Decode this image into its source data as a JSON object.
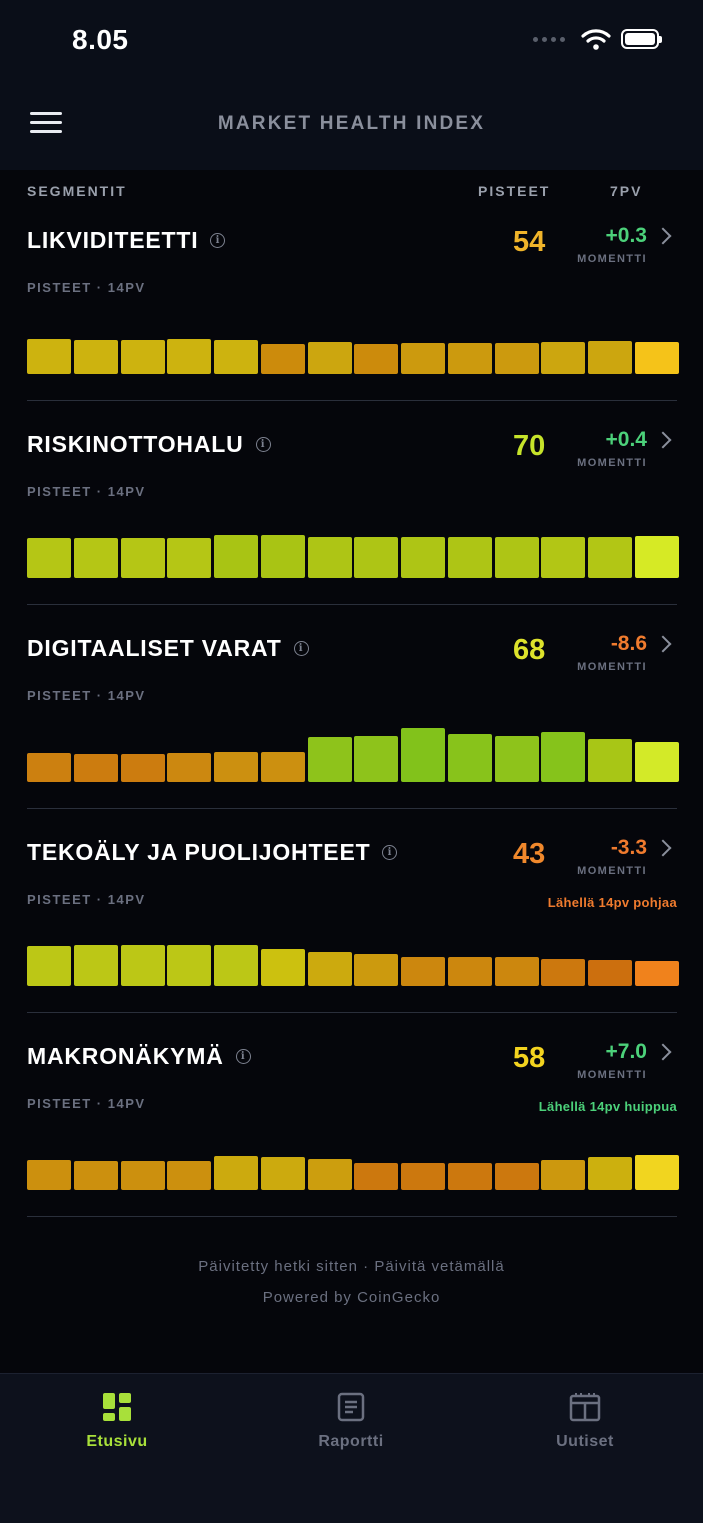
{
  "status_bar": {
    "time": "8.05"
  },
  "header": {
    "title": "MARKET HEALTH INDEX"
  },
  "columns": {
    "segments": "SEGMENTIT",
    "score": "PISTEET",
    "period": "7PV"
  },
  "segments": [
    {
      "name": "LIKVIDITEETTI",
      "subtitle": "PISTEET · 14PV",
      "score": "54",
      "score_color": "#f0b42a",
      "momentum": "+0.3",
      "momentum_color": "#4cd17a",
      "momentum_label": "MOMENTTI",
      "note": "",
      "note_color": "",
      "bars": [
        {
          "v": 0.63,
          "c": "#cdb30f"
        },
        {
          "v": 0.61,
          "c": "#cdb30f"
        },
        {
          "v": 0.61,
          "c": "#cdb30f"
        },
        {
          "v": 0.63,
          "c": "#cdb30f"
        },
        {
          "v": 0.61,
          "c": "#cdb30f"
        },
        {
          "v": 0.54,
          "c": "#cc8b0c"
        },
        {
          "v": 0.57,
          "c": "#cca60f"
        },
        {
          "v": 0.54,
          "c": "#cc8b0c"
        },
        {
          "v": 0.56,
          "c": "#cc9a0e"
        },
        {
          "v": 0.56,
          "c": "#cc9a0e"
        },
        {
          "v": 0.56,
          "c": "#cc9a0e"
        },
        {
          "v": 0.57,
          "c": "#cca60f"
        },
        {
          "v": 0.59,
          "c": "#cca60f"
        },
        {
          "v": 0.57,
          "c": "#f5c319"
        }
      ]
    },
    {
      "name": "RISKINOTTOHALU",
      "subtitle": "PISTEET · 14PV",
      "score": "70",
      "score_color": "#c6e32a",
      "momentum": "+0.4",
      "momentum_color": "#4cd17a",
      "momentum_label": "MOMENTTI",
      "note": "",
      "note_color": "",
      "bars": [
        {
          "v": 0.72,
          "c": "#b5c615"
        },
        {
          "v": 0.72,
          "c": "#b5c615"
        },
        {
          "v": 0.72,
          "c": "#b5c615"
        },
        {
          "v": 0.72,
          "c": "#b5c615"
        },
        {
          "v": 0.76,
          "c": "#a9c414"
        },
        {
          "v": 0.76,
          "c": "#a9c414"
        },
        {
          "v": 0.74,
          "c": "#aec515"
        },
        {
          "v": 0.74,
          "c": "#aec515"
        },
        {
          "v": 0.74,
          "c": "#aec515"
        },
        {
          "v": 0.74,
          "c": "#aec515"
        },
        {
          "v": 0.74,
          "c": "#aec515"
        },
        {
          "v": 0.73,
          "c": "#b2c615"
        },
        {
          "v": 0.73,
          "c": "#b2c615"
        },
        {
          "v": 0.75,
          "c": "#d6ea25"
        }
      ]
    },
    {
      "name": "DIGITAALISET VARAT",
      "subtitle": "PISTEET · 14PV",
      "score": "68",
      "score_color": "#dde22b",
      "momentum": "-8.6",
      "momentum_color": "#f07b2e",
      "momentum_label": "MOMENTTI",
      "note": "",
      "note_color": "",
      "bars": [
        {
          "v": 0.52,
          "c": "#cc8010"
        },
        {
          "v": 0.5,
          "c": "#cc7c0f"
        },
        {
          "v": 0.5,
          "c": "#cc7c0f"
        },
        {
          "v": 0.52,
          "c": "#cc8810"
        },
        {
          "v": 0.54,
          "c": "#cc9010"
        },
        {
          "v": 0.54,
          "c": "#cc9010"
        },
        {
          "v": 0.81,
          "c": "#8ec31b"
        },
        {
          "v": 0.83,
          "c": "#8ec31b"
        },
        {
          "v": 0.96,
          "c": "#82c21b"
        },
        {
          "v": 0.85,
          "c": "#88c31b"
        },
        {
          "v": 0.83,
          "c": "#8ec31b"
        },
        {
          "v": 0.89,
          "c": "#86c31b"
        },
        {
          "v": 0.77,
          "c": "#a8c616"
        },
        {
          "v": 0.72,
          "c": "#d3ea28"
        }
      ]
    },
    {
      "name": "TEKOÄLY JA PUOLIJOHTEET",
      "subtitle": "PISTEET · 14PV",
      "score": "43",
      "score_color": "#f0882c",
      "momentum": "-3.3",
      "momentum_color": "#f07b2e",
      "momentum_label": "MOMENTTI",
      "note": "Lähellä 14pv pohjaa",
      "note_color": "#f07b2e",
      "bars": [
        {
          "v": 0.72,
          "c": "#bcc716"
        },
        {
          "v": 0.74,
          "c": "#bcc716"
        },
        {
          "v": 0.74,
          "c": "#bcc716"
        },
        {
          "v": 0.74,
          "c": "#bcc716"
        },
        {
          "v": 0.74,
          "c": "#bcc716"
        },
        {
          "v": 0.66,
          "c": "#ccc10f"
        },
        {
          "v": 0.61,
          "c": "#ccaa0e"
        },
        {
          "v": 0.57,
          "c": "#cc9a0e"
        },
        {
          "v": 0.52,
          "c": "#cc870e"
        },
        {
          "v": 0.52,
          "c": "#cc870e"
        },
        {
          "v": 0.52,
          "c": "#cc870e"
        },
        {
          "v": 0.48,
          "c": "#cc780e"
        },
        {
          "v": 0.46,
          "c": "#cc6f0e"
        },
        {
          "v": 0.45,
          "c": "#f0821c"
        }
      ]
    },
    {
      "name": "MAKRONÄKYMÄ",
      "subtitle": "PISTEET · 14PV",
      "score": "58",
      "score_color": "#f3d31f",
      "momentum": "+7.0",
      "momentum_color": "#4cd17a",
      "momentum_label": "MOMENTTI",
      "note": "Lähellä 14pv huippua",
      "note_color": "#4cd17a",
      "bars": [
        {
          "v": 0.54,
          "c": "#cc900e"
        },
        {
          "v": 0.52,
          "c": "#cc900e"
        },
        {
          "v": 0.52,
          "c": "#cc900e"
        },
        {
          "v": 0.52,
          "c": "#cc900e"
        },
        {
          "v": 0.61,
          "c": "#ccaa0e"
        },
        {
          "v": 0.59,
          "c": "#ccaa0e"
        },
        {
          "v": 0.56,
          "c": "#cc9e0e"
        },
        {
          "v": 0.48,
          "c": "#cc780e"
        },
        {
          "v": 0.48,
          "c": "#cc780e"
        },
        {
          "v": 0.48,
          "c": "#cc780e"
        },
        {
          "v": 0.48,
          "c": "#cc780e"
        },
        {
          "v": 0.54,
          "c": "#cc980e"
        },
        {
          "v": 0.59,
          "c": "#ccb00e"
        },
        {
          "v": 0.63,
          "c": "#f1d51f"
        }
      ]
    }
  ],
  "footer": {
    "updated": "Päivitetty hetki sitten  ·  Päivitä vetämällä",
    "powered": "Powered by CoinGecko"
  },
  "tabs": [
    {
      "label": "Etusivu",
      "icon": "dashboard-icon",
      "active": true
    },
    {
      "label": "Raportti",
      "icon": "report-icon",
      "active": false
    },
    {
      "label": "Uutiset",
      "icon": "news-icon",
      "active": false
    }
  ],
  "colors": {
    "accent": "#a8e03a",
    "inactive_tab": "#6b7080"
  }
}
